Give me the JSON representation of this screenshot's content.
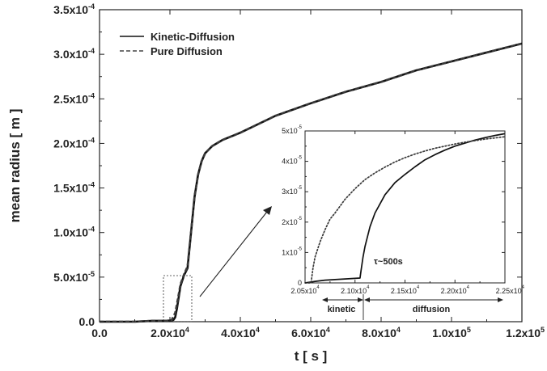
{
  "chart_data": [
    {
      "type": "line",
      "xlabel": "t [ s ]",
      "ylabel": "mean radius [ m ]",
      "xlim": [
        0,
        120000
      ],
      "ylim": [
        0,
        0.00035
      ],
      "x_ticks": [
        {
          "value": 0,
          "label": "0.0"
        },
        {
          "value": 20000,
          "label": "2.0x10",
          "exp": "4"
        },
        {
          "value": 40000,
          "label": "4.0x10",
          "exp": "4"
        },
        {
          "value": 60000,
          "label": "6.0x10",
          "exp": "4"
        },
        {
          "value": 80000,
          "label": "8.0x10",
          "exp": "4"
        },
        {
          "value": 100000,
          "label": "1.0x10",
          "exp": "5"
        },
        {
          "value": 120000,
          "label": "1.2x10",
          "exp": "5"
        }
      ],
      "y_ticks": [
        {
          "value": 0,
          "label": "0.0"
        },
        {
          "value": 5e-05,
          "label": "5.0x10",
          "exp": "-5"
        },
        {
          "value": 0.0001,
          "label": "1.0x10",
          "exp": "-4"
        },
        {
          "value": 0.00015,
          "label": "1.5x10",
          "exp": "-4"
        },
        {
          "value": 0.0002,
          "label": "2.0x10",
          "exp": "-4"
        },
        {
          "value": 0.00025,
          "label": "2.5x10",
          "exp": "-4"
        },
        {
          "value": 0.0003,
          "label": "3.0x10",
          "exp": "-4"
        },
        {
          "value": 0.00035,
          "label": "3.5x10",
          "exp": "-4"
        }
      ],
      "legend_position": "top-left",
      "series": [
        {
          "name": "Kinetic-Diffusion",
          "style": "solid",
          "x": [
            0,
            10000,
            15000,
            19000,
            20500,
            21000,
            21500,
            22000,
            23000,
            24000,
            25000,
            26000,
            27000,
            28000,
            29000,
            30000,
            32000,
            35000,
            40000,
            50000,
            60000,
            70000,
            80000,
            90000,
            100000,
            110000,
            120000
          ],
          "y": [
            0,
            0,
            1e-06,
            1e-06,
            1.5e-06,
            2e-06,
            5e-06,
            1.5e-05,
            4e-05,
            5.2e-05,
            6e-05,
            0.0001,
            0.00014,
            0.000165,
            0.00018,
            0.000189,
            0.000197,
            0.000204,
            0.000212,
            0.000231,
            0.000245,
            0.000258,
            0.000269,
            0.000282,
            0.000292,
            0.000302,
            0.000312
          ]
        },
        {
          "name": "Pure Diffusion",
          "style": "dashed",
          "x": [
            0,
            10000,
            15000,
            19000,
            20500,
            21000,
            21500,
            22000,
            23000,
            24000,
            25000,
            26000,
            27000,
            28000,
            29000,
            30000,
            32000,
            35000,
            40000,
            50000,
            60000,
            70000,
            80000,
            90000,
            100000,
            110000,
            120000
          ],
          "y": [
            0,
            0,
            1e-06,
            1e-06,
            2e-06,
            6e-06,
            1e-05,
            2e-05,
            4.2e-05,
            5.3e-05,
            6.2e-05,
            0.000101,
            0.000141,
            0.000165,
            0.00018,
            0.000189,
            0.000197,
            0.000204,
            0.000212,
            0.000231,
            0.000245,
            0.000258,
            0.000269,
            0.000282,
            0.000292,
            0.000302,
            0.000312
          ]
        }
      ]
    },
    {
      "type": "line",
      "role": "inset",
      "xlim": [
        20500,
        22500
      ],
      "ylim": [
        0,
        5e-05
      ],
      "x_ticks": [
        {
          "value": 20500,
          "label": "2.05x10",
          "exp": "4"
        },
        {
          "value": 21000,
          "label": "2.10x10",
          "exp": "4"
        },
        {
          "value": 21500,
          "label": "2.15x10",
          "exp": "4"
        },
        {
          "value": 22000,
          "label": "2.20x10",
          "exp": "4"
        },
        {
          "value": 22500,
          "label": "2.25x10",
          "exp": "4"
        }
      ],
      "y_ticks": [
        {
          "value": 0,
          "label": "0"
        },
        {
          "value": 1e-05,
          "label": "1x10",
          "exp": "-5"
        },
        {
          "value": 2e-05,
          "label": "2x10",
          "exp": "-5"
        },
        {
          "value": 3e-05,
          "label": "3x10",
          "exp": "-5"
        },
        {
          "value": 4e-05,
          "label": "4x10",
          "exp": "-5"
        },
        {
          "value": 5e-05,
          "label": "5x10",
          "exp": "-5"
        }
      ],
      "annotations": {
        "tau": "τ~500s",
        "kinetic": "kinetic",
        "diffusion": "diffusion"
      },
      "series": [
        {
          "name": "Kinetic-Diffusion",
          "style": "solid",
          "x": [
            20500,
            20550,
            20600,
            20700,
            20800,
            20900,
            21000,
            21050,
            21060,
            21080,
            21100,
            21150,
            21200,
            21300,
            21400,
            21500,
            21600,
            21700,
            21800,
            21900,
            22000,
            22100,
            22200,
            22300,
            22400,
            22500
          ],
          "y": [
            0,
            2.5e-07,
            5e-07,
            9e-07,
            1.1e-06,
            1.3e-06,
            1.5e-06,
            1.6e-06,
            4e-06,
            8.5e-06,
            1.2e-05,
            1.85e-05,
            2.3e-05,
            2.9e-05,
            3.3e-05,
            3.57e-05,
            3.82e-05,
            4.05e-05,
            4.22e-05,
            4.37e-05,
            4.5e-05,
            4.6e-05,
            4.7e-05,
            4.78e-05,
            4.85e-05,
            4.91e-05
          ]
        },
        {
          "name": "Pure Diffusion",
          "style": "dotted",
          "x": [
            20500,
            20560,
            20580,
            20600,
            20650,
            20700,
            20750,
            20800,
            20900,
            21000,
            21100,
            21200,
            21300,
            21400,
            21500,
            21600,
            21700,
            21800,
            21900,
            22000,
            22100,
            22200,
            22300,
            22400,
            22500
          ],
          "y": [
            0,
            0,
            5e-06,
            8.5e-06,
            1.35e-05,
            1.75e-05,
            2.1e-05,
            2.3e-05,
            2.75e-05,
            3.1e-05,
            3.4e-05,
            3.62e-05,
            3.81e-05,
            3.98e-05,
            4.12e-05,
            4.24e-05,
            4.34e-05,
            4.43e-05,
            4.5e-05,
            4.57e-05,
            4.63e-05,
            4.68e-05,
            4.73e-05,
            4.77e-05,
            4.81e-05
          ]
        }
      ]
    }
  ]
}
